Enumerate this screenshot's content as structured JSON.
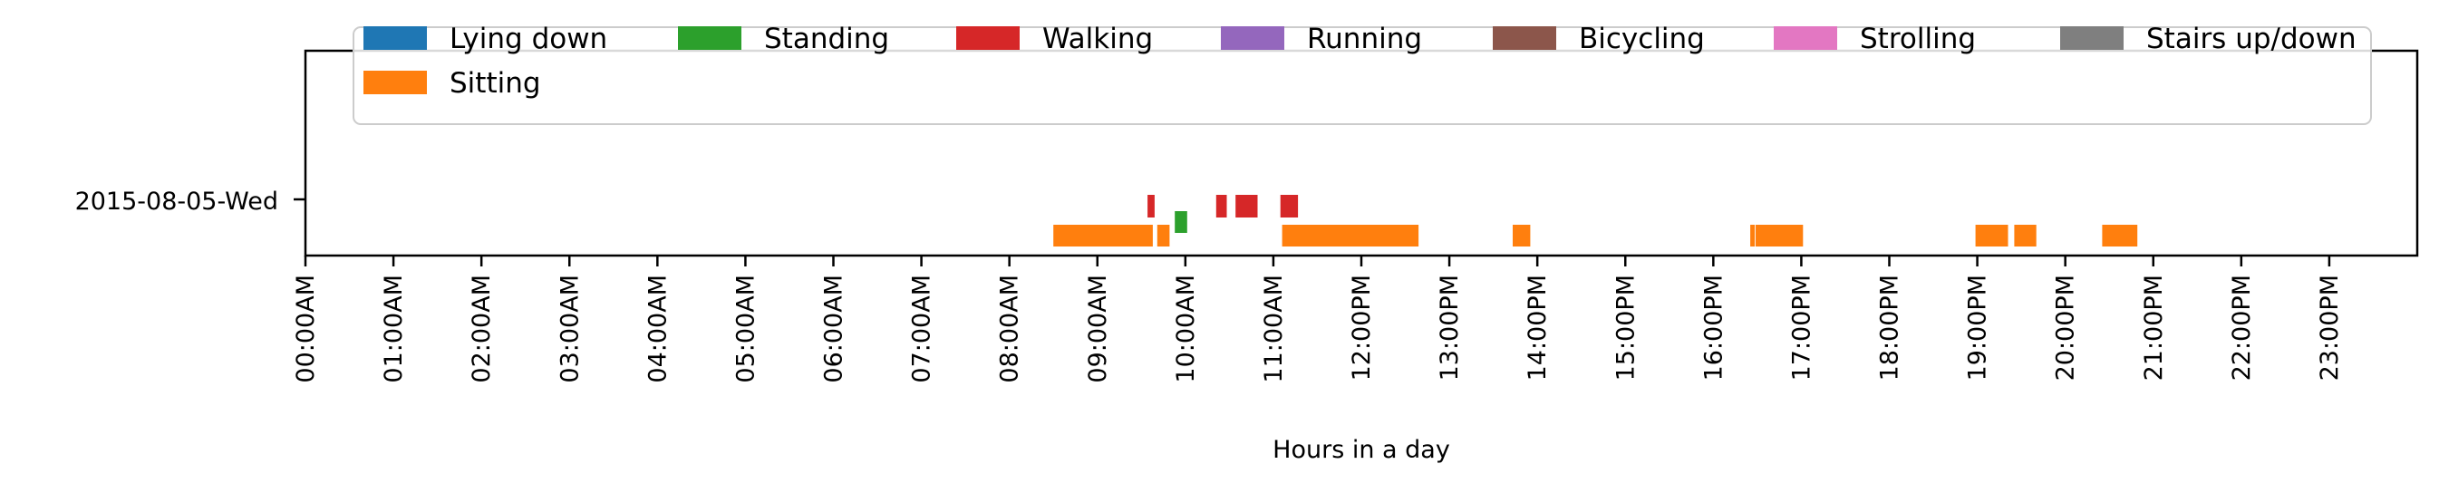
{
  "chart_data": {
    "type": "bar",
    "subtype": "broken-barh-timeline",
    "title": "",
    "xlabel": "Hours in a day",
    "ylabel": "",
    "xlim": [
      0,
      24
    ],
    "x_ticks": [
      "00:00AM",
      "01:00AM",
      "02:00AM",
      "03:00AM",
      "04:00AM",
      "05:00AM",
      "06:00AM",
      "07:00AM",
      "08:00AM",
      "09:00AM",
      "10:00AM",
      "11:00AM",
      "12:00PM",
      "13:00PM",
      "14:00PM",
      "15:00PM",
      "16:00PM",
      "17:00PM",
      "18:00PM",
      "19:00PM",
      "20:00PM",
      "21:00PM",
      "22:00PM",
      "23:00PM"
    ],
    "y_categories": [
      "2015-08-05-Wed"
    ],
    "grid": false,
    "legend_position": "top",
    "series": [
      {
        "name": "Lying down",
        "color": "#1f77b4",
        "lane": 4,
        "intervals": []
      },
      {
        "name": "Sitting",
        "color": "#ff7f0e",
        "lane": 0,
        "intervals": [
          [
            8.5,
            9.63
          ],
          [
            9.68,
            9.82
          ],
          [
            11.1,
            12.65
          ],
          [
            13.72,
            13.92
          ],
          [
            16.42,
            16.47
          ],
          [
            16.48,
            17.02
          ],
          [
            18.98,
            19.35
          ],
          [
            19.42,
            19.67
          ],
          [
            20.42,
            20.82
          ]
        ]
      },
      {
        "name": "Standing",
        "color": "#2ca02c",
        "lane": 1,
        "intervals": [
          [
            9.88,
            10.02
          ]
        ]
      },
      {
        "name": "Walking",
        "color": "#d62728",
        "lane": 2,
        "intervals": [
          [
            9.57,
            9.65
          ],
          [
            10.35,
            10.47
          ],
          [
            10.57,
            10.82
          ],
          [
            11.08,
            11.28
          ]
        ]
      },
      {
        "name": "Running",
        "color": "#9467bd",
        "lane": 3,
        "intervals": []
      },
      {
        "name": "Bicycling",
        "color": "#8c564b",
        "lane": 5,
        "intervals": []
      },
      {
        "name": "Strolling",
        "color": "#e377c2",
        "lane": 6,
        "intervals": []
      },
      {
        "name": "Stairs up/down",
        "color": "#7f7f7f",
        "lane": 7,
        "intervals": []
      }
    ]
  }
}
